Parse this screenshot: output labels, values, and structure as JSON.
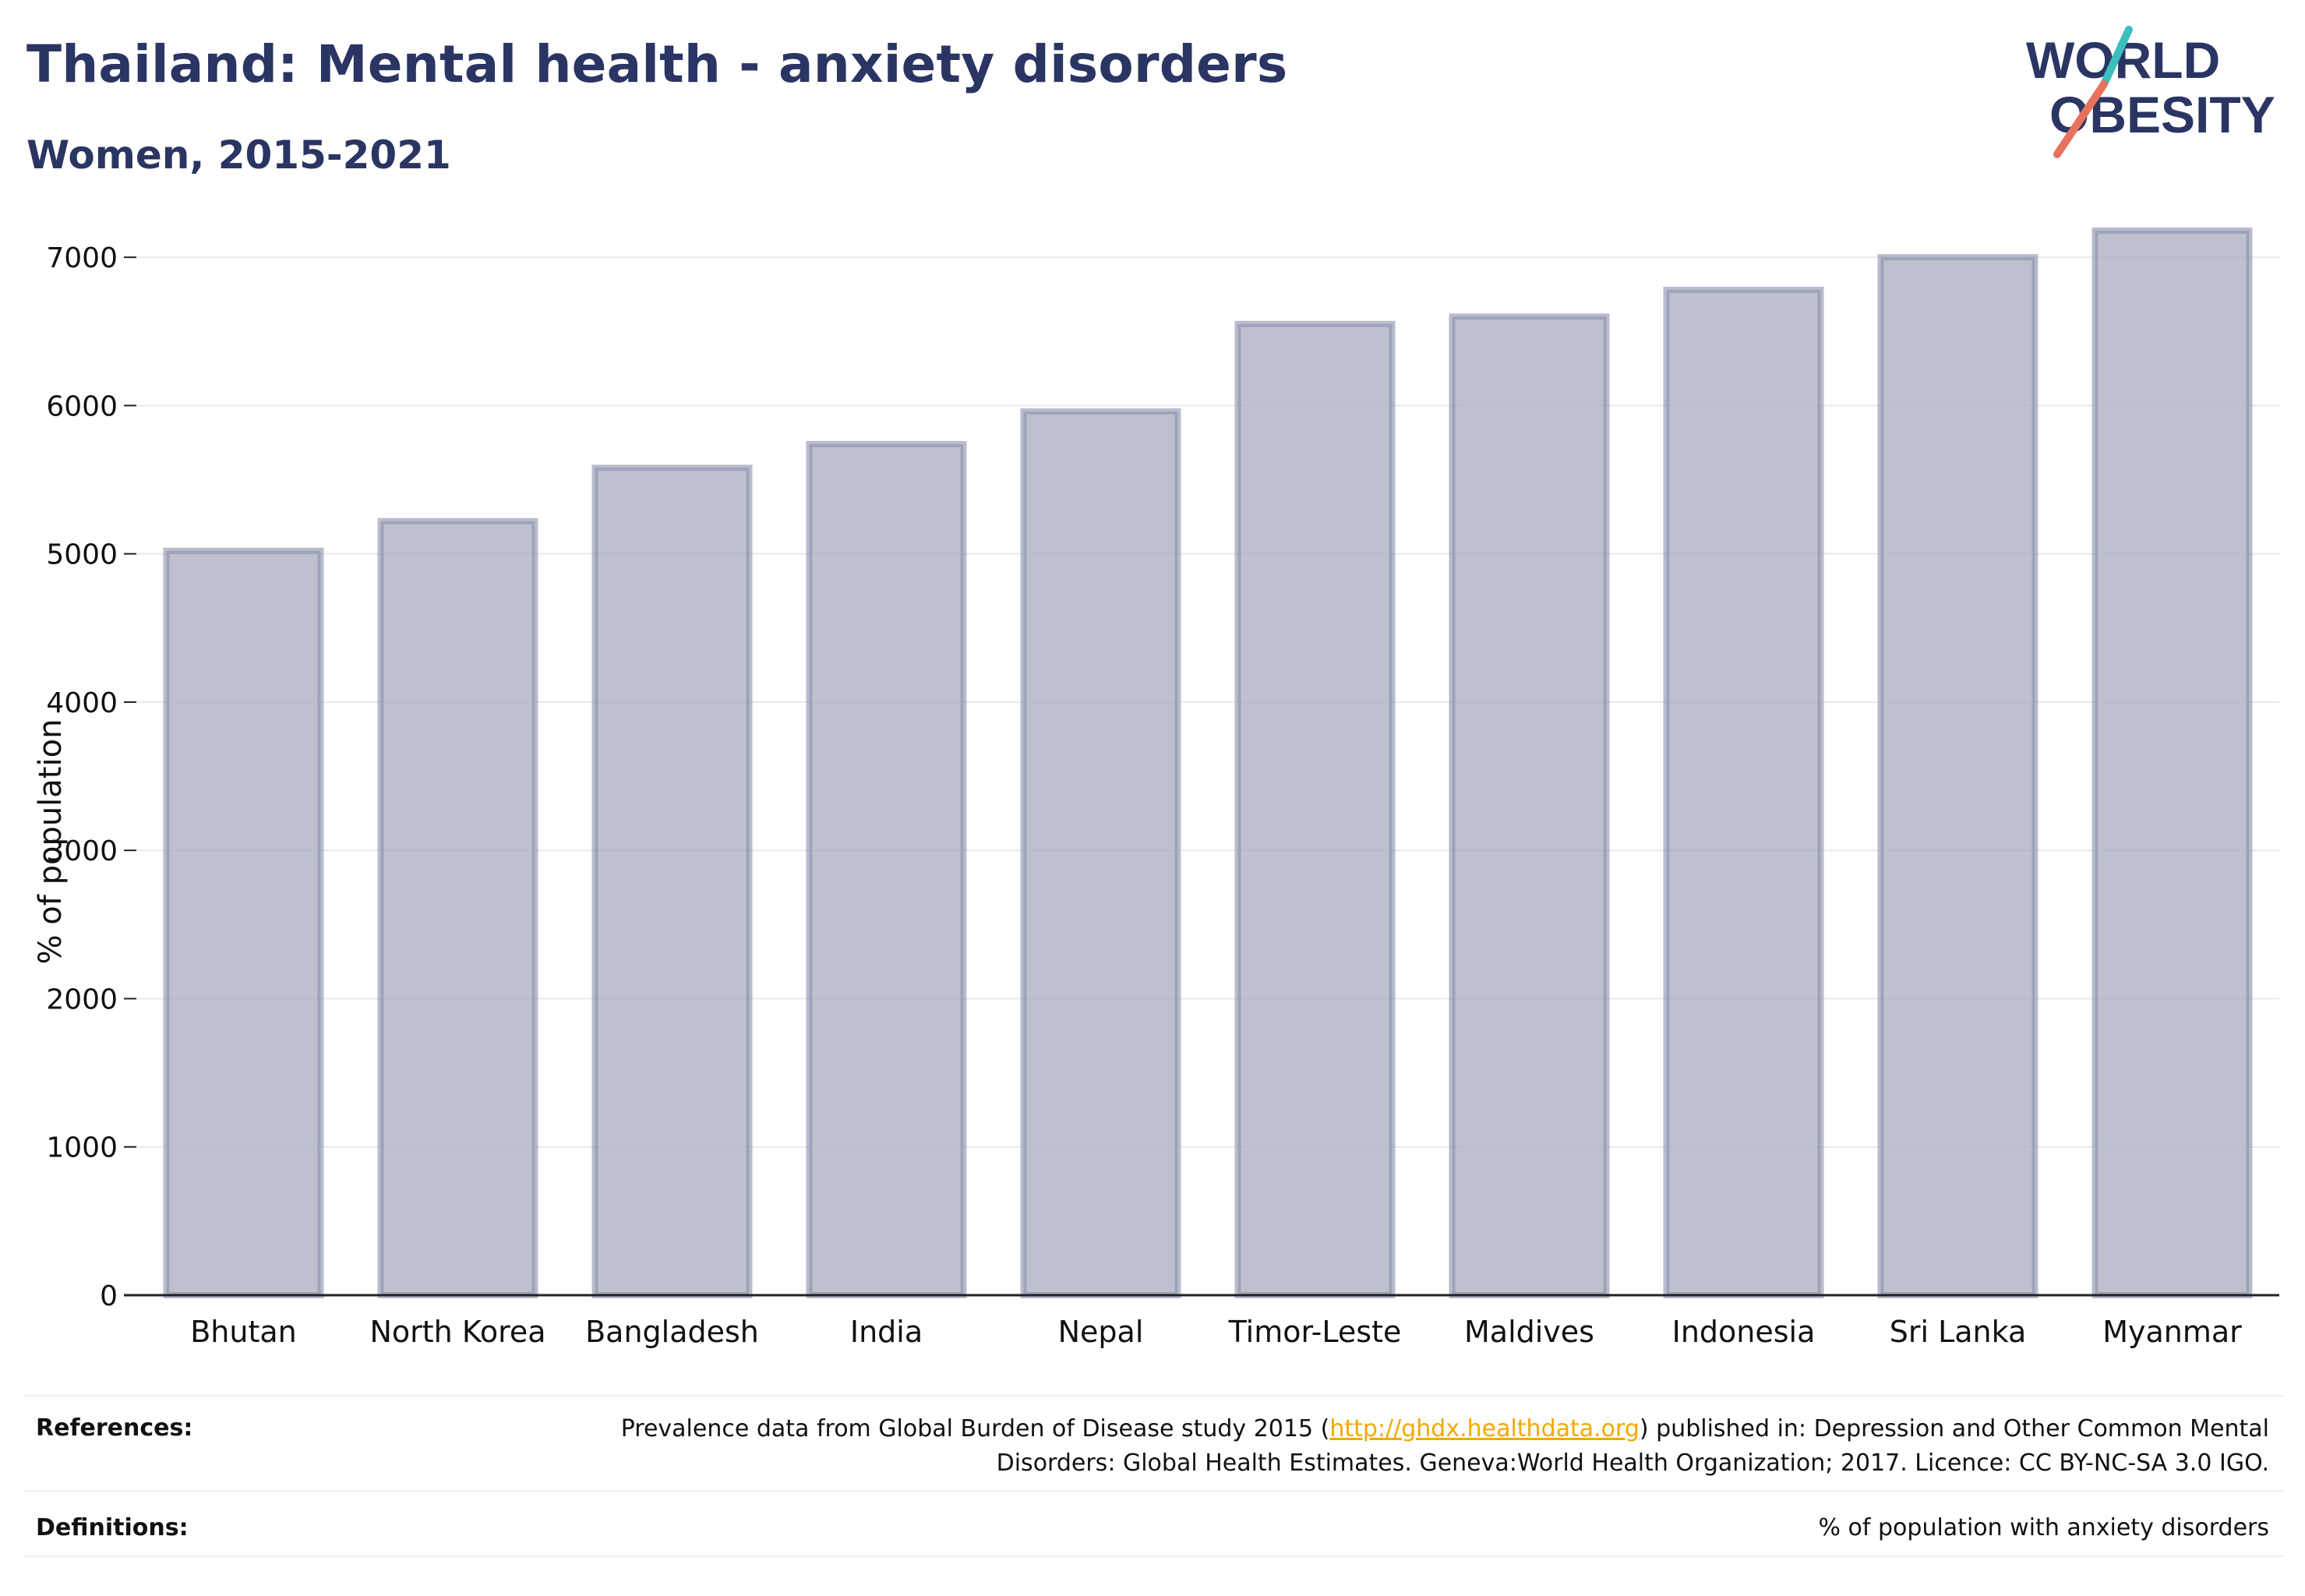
{
  "header": {
    "title": "Thailand: Mental health - anxiety disorders",
    "subtitle": "Women, 2015-2021"
  },
  "logo": {
    "line1": "WORLD",
    "line2": "OBESITY",
    "colors": {
      "text": "#2a3563",
      "slash_top": "#3bbfbd",
      "slash_bottom": "#e8725c"
    }
  },
  "chart_data": {
    "type": "bar",
    "categories": [
      "Bhutan",
      "North Korea",
      "Bangladesh",
      "India",
      "Nepal",
      "Timor-Leste",
      "Maldives",
      "Indonesia",
      "Sri Lanka",
      "Myanmar"
    ],
    "values": [
      5020,
      5220,
      5580,
      5740,
      5960,
      6550,
      6600,
      6780,
      7000,
      7180
    ],
    "ylabel": "% of population",
    "xlabel": "",
    "ylim": [
      0,
      7500
    ],
    "yticks": [
      0,
      1000,
      2000,
      3000,
      4000,
      5000,
      6000,
      7000
    ],
    "grid": true,
    "colors": {
      "bar_fill": "#a7acbf",
      "bar_stroke": "#8a90ab",
      "axis": "#222222",
      "grid": "#e8e9ee"
    }
  },
  "footer": {
    "references_label": "References:",
    "references_text_before": "Prevalence data from Global Burden of Disease study 2015 (",
    "references_link": "http://ghdx.healthdata.org",
    "references_text_after": ") published in: Depression and Other Common Mental Disorders: Global Health Estimates. Geneva:World Health Organization; 2017. Licence: CC BY-NC-SA 3.0 IGO.",
    "definitions_label": "Definitions:",
    "definitions_text": "% of population with anxiety disorders"
  }
}
